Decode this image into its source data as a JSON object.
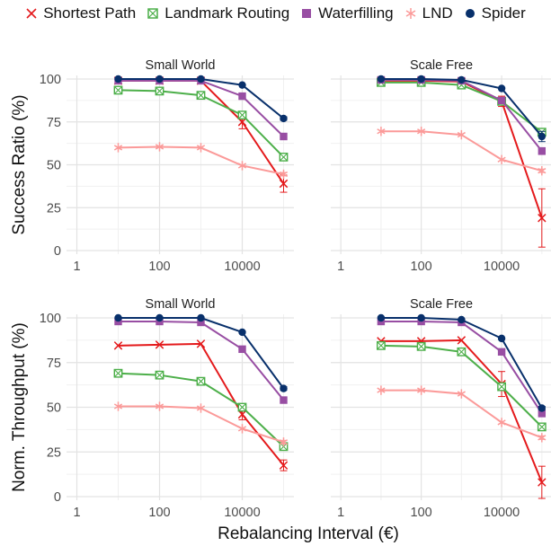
{
  "chart_data": {
    "type": "line",
    "x_scale": "log10",
    "x_ticks": [
      1,
      100,
      10000
    ],
    "x_tick_labels": [
      "1",
      "100",
      "10000"
    ],
    "x_values": [
      10,
      100,
      1000,
      10000,
      100000
    ],
    "xlabel": "Rebalancing Interval (€)",
    "legend": {
      "position": "top"
    },
    "series_styles": [
      {
        "name": "Shortest Path",
        "color": "#e41a1c",
        "marker": "x"
      },
      {
        "name": "Landmark Routing",
        "color": "#4daf4a",
        "marker": "square-cross"
      },
      {
        "name": "Waterfilling",
        "color": "#984ea3",
        "marker": "square"
      },
      {
        "name": "LND",
        "color": "#fb9a99",
        "marker": "asterisk"
      },
      {
        "name": "Spider",
        "color": "#08306b",
        "marker": "circle"
      }
    ],
    "rows": [
      {
        "ylabel": "Success Ratio (%)",
        "ylim": [
          0,
          100
        ],
        "y_ticks": [
          0,
          25,
          50,
          75,
          100
        ]
      },
      {
        "ylabel": "Norm. Throughput (%)",
        "ylim": [
          0,
          100
        ],
        "y_ticks": [
          0,
          25,
          50,
          75,
          100
        ]
      }
    ],
    "columns": [
      {
        "title": "Small World"
      },
      {
        "title": "Scale Free"
      }
    ],
    "panels": [
      {
        "row": 0,
        "col": 0,
        "series": [
          {
            "name": "Shortest Path",
            "values": [
              99,
              99,
              99,
              75,
              39
            ],
            "error": [
              0.5,
              0.5,
              0.5,
              4,
              5
            ]
          },
          {
            "name": "Landmark Routing",
            "values": [
              93.5,
              93,
              90.5,
              79,
              54.5
            ],
            "error": [
              0.5,
              0.5,
              0.5,
              1,
              2
            ]
          },
          {
            "name": "Waterfilling",
            "values": [
              99,
              99,
              99,
              90,
              66.5
            ],
            "error": [
              0.3,
              0.3,
              0.3,
              0.5,
              1
            ]
          },
          {
            "name": "LND",
            "values": [
              60,
              60.5,
              60,
              49.5,
              44.5
            ],
            "error": [
              0.5,
              0.5,
              0.5,
              0.5,
              1
            ]
          },
          {
            "name": "Spider",
            "values": [
              100,
              100,
              100,
              96.5,
              77
            ],
            "error": [
              0.2,
              0.2,
              0.2,
              0.5,
              1
            ]
          }
        ]
      },
      {
        "row": 0,
        "col": 1,
        "series": [
          {
            "name": "Shortest Path",
            "values": [
              99,
              99,
              98.5,
              87,
              19
            ],
            "error": [
              0.5,
              0.5,
              0.5,
              3,
              17
            ]
          },
          {
            "name": "Landmark Routing",
            "values": [
              98,
              98,
              96.5,
              87,
              69
            ],
            "error": [
              0.5,
              0.5,
              0.5,
              1,
              2
            ]
          },
          {
            "name": "Waterfilling",
            "values": [
              99.5,
              99.5,
              99,
              87.5,
              58
            ],
            "error": [
              0.3,
              0.3,
              0.3,
              1,
              2
            ]
          },
          {
            "name": "LND",
            "values": [
              69.5,
              69.5,
              67.5,
              53,
              46.5
            ],
            "error": [
              0.5,
              0.5,
              0.5,
              0.5,
              1
            ]
          },
          {
            "name": "Spider",
            "values": [
              100,
              100,
              99.5,
              94.5,
              66.5
            ],
            "error": [
              0.2,
              0.2,
              0.2,
              0.5,
              3
            ]
          }
        ]
      },
      {
        "row": 1,
        "col": 0,
        "series": [
          {
            "name": "Shortest Path",
            "values": [
              84.5,
              85,
              85.5,
              46,
              17.5
            ],
            "error": [
              0.5,
              0.5,
              0.5,
              3,
              3
            ]
          },
          {
            "name": "Landmark Routing",
            "values": [
              69,
              68,
              64.5,
              50,
              28
            ],
            "error": [
              0.5,
              0.5,
              0.5,
              1,
              1
            ]
          },
          {
            "name": "Waterfilling",
            "values": [
              98,
              98,
              97.5,
              82.5,
              54
            ],
            "error": [
              0.3,
              0.3,
              0.3,
              0.5,
              1
            ]
          },
          {
            "name": "LND",
            "values": [
              50.5,
              50.5,
              49.5,
              38,
              30.5
            ],
            "error": [
              0.5,
              0.5,
              0.5,
              0.5,
              1
            ]
          },
          {
            "name": "Spider",
            "values": [
              100,
              100,
              100,
              92,
              60.5
            ],
            "error": [
              0.2,
              0.2,
              0.2,
              0.5,
              1
            ]
          }
        ]
      },
      {
        "row": 1,
        "col": 1,
        "series": [
          {
            "name": "Shortest Path",
            "values": [
              87,
              87,
              87.5,
              63,
              8
            ],
            "error": [
              0.5,
              0.5,
              0.5,
              7,
              9
            ]
          },
          {
            "name": "Landmark Routing",
            "values": [
              84.5,
              84,
              81,
              61.5,
              39
            ],
            "error": [
              0.5,
              0.5,
              0.5,
              1,
              1
            ]
          },
          {
            "name": "Waterfilling",
            "values": [
              98,
              98,
              97.5,
              81,
              46.5
            ],
            "error": [
              0.3,
              0.3,
              0.3,
              0.5,
              1
            ]
          },
          {
            "name": "LND",
            "values": [
              59.5,
              59.5,
              57.5,
              41.5,
              33
            ],
            "error": [
              0.5,
              0.5,
              0.5,
              0.5,
              1
            ]
          },
          {
            "name": "Spider",
            "values": [
              100,
              100,
              99,
              88.5,
              49.5
            ],
            "error": [
              0.2,
              0.2,
              0.2,
              0.5,
              1
            ]
          }
        ]
      }
    ]
  }
}
